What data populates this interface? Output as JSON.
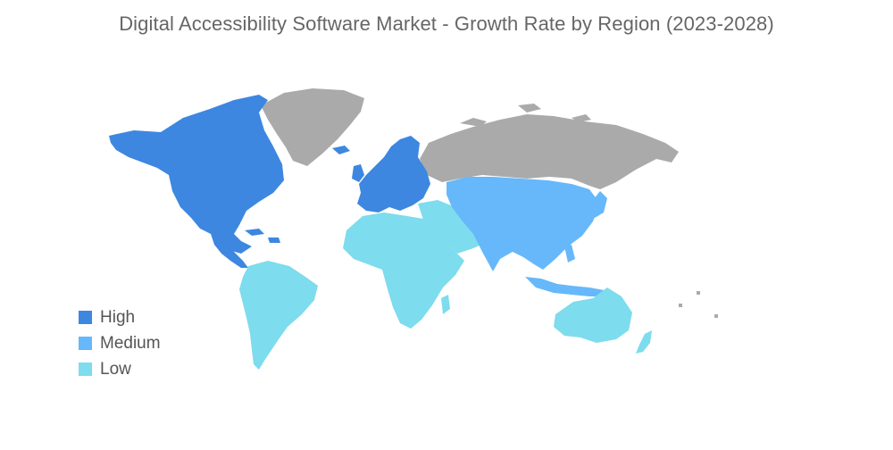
{
  "title": "Digital Accessibility Software Market - Growth Rate by Region (2023-2028)",
  "colors": {
    "high": "#3d87e0",
    "medium": "#66b8fa",
    "low": "#7ddced",
    "no_data": "#aaaaaa"
  },
  "legend": [
    {
      "label": "High",
      "color": "#3d87e0"
    },
    {
      "label": "Medium",
      "color": "#66b8fa"
    },
    {
      "label": "Low",
      "color": "#7ddced"
    }
  ],
  "regions": [
    {
      "name": "north-america",
      "level": "High"
    },
    {
      "name": "europe",
      "level": "High"
    },
    {
      "name": "asia-pacific",
      "level": "Medium"
    },
    {
      "name": "south-america",
      "level": "Low"
    },
    {
      "name": "middle-east-and-africa",
      "level": "Low"
    },
    {
      "name": "australia-and-new-zealand",
      "level": "Low"
    },
    {
      "name": "greenland",
      "level": "no-data"
    },
    {
      "name": "russia",
      "level": "no-data"
    }
  ]
}
